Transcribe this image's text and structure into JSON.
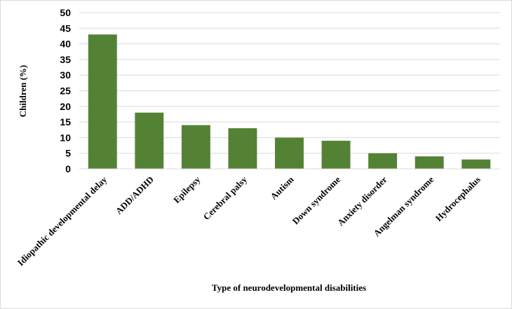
{
  "chart_data": {
    "type": "bar",
    "title": "",
    "xlabel": "Type of neurodevelopmental disabilities",
    "ylabel": "Children (%)",
    "ylim": [
      0,
      50
    ],
    "ytick_step": 5,
    "categories": [
      "Idiopathic developmental delay",
      "ADD/ADHD",
      "Epilepsy",
      "Cerebral palsy",
      "Autism",
      "Down syndrome",
      "Anxiety disorder",
      "Angelman syndrome",
      "Hydrocephalus"
    ],
    "values": [
      43,
      18,
      14,
      13,
      10,
      9,
      5,
      4,
      3
    ],
    "bar_color": "#548235",
    "grid": true,
    "legend": "none"
  }
}
